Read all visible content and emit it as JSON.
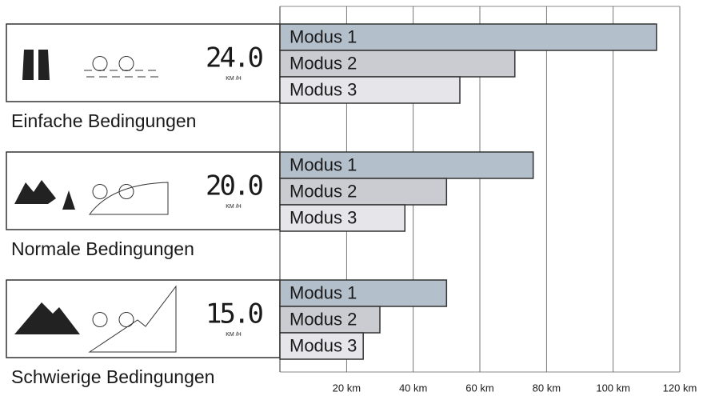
{
  "chart_data": {
    "type": "bar",
    "orientation": "horizontal",
    "categories": [
      "Einfache Bedingungen",
      "Normale Bedingungen",
      "Schwierige Bedingungen"
    ],
    "panels": [
      {
        "speed": "24.0",
        "unit": "KM /H"
      },
      {
        "speed": "20.0",
        "unit": "KM /H"
      },
      {
        "speed": "15.0",
        "unit": "KM /H"
      }
    ],
    "series": [
      {
        "name": "Modus 1",
        "color": "#b4bfcc",
        "values": [
          113,
          76,
          50
        ]
      },
      {
        "name": "Modus 2",
        "color": "#cbccd2",
        "values": [
          70.5,
          50,
          30
        ]
      },
      {
        "name": "Modus 3",
        "color": "#e6e6ea",
        "values": [
          54,
          37.5,
          25
        ]
      }
    ],
    "xlim": [
      0,
      120
    ],
    "xticks": [
      {
        "value": 20,
        "label": "20 km"
      },
      {
        "value": 40,
        "label": "40 km"
      },
      {
        "value": 60,
        "label": "60 km"
      },
      {
        "value": 80,
        "label": "80 km"
      },
      {
        "value": 100,
        "label": "100 km"
      },
      {
        "value": 120,
        "label": "120 km"
      }
    ],
    "grid": true
  }
}
